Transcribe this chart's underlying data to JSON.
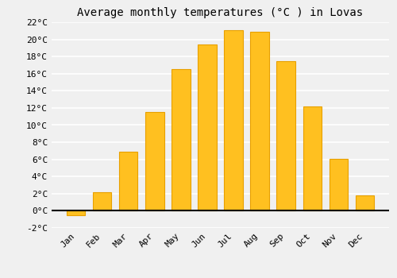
{
  "title": "Average monthly temperatures (°C ) in Lovas",
  "months": [
    "Jan",
    "Feb",
    "Mar",
    "Apr",
    "May",
    "Jun",
    "Jul",
    "Aug",
    "Sep",
    "Oct",
    "Nov",
    "Dec"
  ],
  "values": [
    -0.5,
    2.2,
    6.9,
    11.5,
    16.5,
    19.4,
    21.1,
    20.9,
    17.5,
    12.2,
    6.1,
    1.8
  ],
  "bar_color": "#FFC020",
  "bar_edge_color": "#E8A000",
  "ylim": [
    -2,
    22
  ],
  "yticks": [
    -2,
    0,
    2,
    4,
    6,
    8,
    10,
    12,
    14,
    16,
    18,
    20,
    22
  ],
  "background_color": "#f0f0f0",
  "plot_bg_color": "#f0f0f0",
  "grid_color": "#ffffff",
  "title_fontsize": 10,
  "tick_fontsize": 8,
  "font_family": "monospace"
}
